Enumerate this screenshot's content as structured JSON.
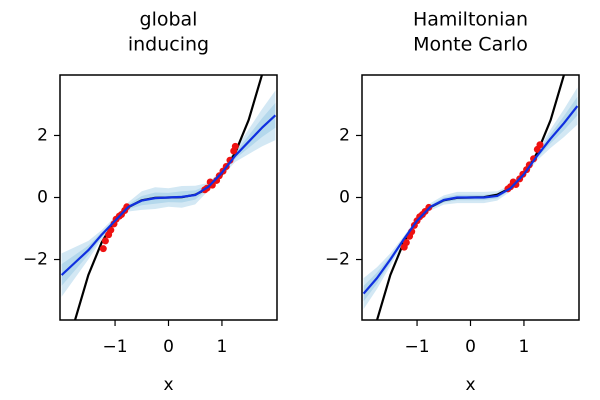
{
  "chart_data": [
    {
      "type": "line",
      "title": [
        "global",
        "inducing"
      ],
      "x_label": "x",
      "xlim": [
        -2.03,
        2.03
      ],
      "ylim": [
        -3.95,
        3.95
      ],
      "xticks": [
        {
          "value": -1,
          "label": "−1"
        },
        0,
        1
      ],
      "yticks": [
        {
          "value": -2,
          "label": "−2"
        },
        0,
        2
      ],
      "series": [
        {
          "kind": "band",
          "color": "#d3e8f4",
          "x": [
            -2,
            -1.75,
            -1.5,
            -1.25,
            -1,
            -0.75,
            -0.5,
            -0.25,
            0,
            0.25,
            0.5,
            0.75,
            1,
            1.25,
            1.5,
            1.75,
            2
          ],
          "lower": [
            -3.2,
            -2.6,
            -2.0,
            -1.35,
            -0.87,
            -0.45,
            -0.4,
            -0.37,
            -0.3,
            -0.33,
            -0.22,
            0.23,
            0.68,
            1.15,
            1.4,
            1.65,
            1.85
          ],
          "upper": [
            -1.8,
            -1.6,
            -1.4,
            -1.05,
            -0.63,
            -0.15,
            0.2,
            0.33,
            0.3,
            0.37,
            0.38,
            0.47,
            0.92,
            1.55,
            2.2,
            2.85,
            3.45
          ]
        },
        {
          "kind": "band",
          "color": "#b4d8ec",
          "x": [
            -2,
            -1.75,
            -1.5,
            -1.25,
            -1,
            -0.75,
            -0.5,
            -0.25,
            0,
            0.25,
            0.5,
            0.75,
            1,
            1.25,
            1.5,
            1.75,
            2
          ],
          "lower": [
            -2.85,
            -2.35,
            -1.85,
            -1.28,
            -0.81,
            -0.38,
            -0.25,
            -0.2,
            -0.15,
            -0.16,
            -0.07,
            0.29,
            0.74,
            1.25,
            1.6,
            1.95,
            2.25
          ],
          "upper": [
            -2.15,
            -1.85,
            -1.55,
            -1.12,
            -0.69,
            -0.22,
            0.05,
            0.16,
            0.15,
            0.2,
            0.23,
            0.41,
            0.86,
            1.45,
            2.0,
            2.55,
            3.05
          ]
        },
        {
          "kind": "line",
          "color": "#000000",
          "x": [
            -1.75,
            -1.5,
            -1.25,
            -1,
            -0.75,
            -0.5,
            -0.25,
            0,
            0.25,
            0.5,
            0.75,
            1,
            1.25,
            1.5,
            1.75
          ],
          "values": [
            -3.96,
            -2.5,
            -1.45,
            -0.74,
            -0.31,
            -0.09,
            -0.01,
            0,
            0.01,
            0.09,
            0.31,
            0.74,
            1.45,
            2.5,
            3.96
          ]
        },
        {
          "kind": "scatter",
          "color": "#ee1111",
          "x": [
            -1.22,
            -1.18,
            -1.12,
            -1.08,
            -1.02,
            -0.98,
            -0.92,
            -0.88,
            -0.82,
            -0.78,
            0.68,
            0.72,
            0.78,
            0.82,
            0.9,
            0.95,
            1.02,
            1.08,
            1.15,
            1.22,
            1.25
          ],
          "values": [
            -1.65,
            -1.4,
            -1.2,
            -1.05,
            -0.85,
            -0.7,
            -0.6,
            -0.55,
            -0.42,
            -0.3,
            0.25,
            0.3,
            0.5,
            0.4,
            0.55,
            0.7,
            0.85,
            1.0,
            1.2,
            1.5,
            1.65
          ]
        },
        {
          "kind": "line",
          "color": "#1030e0",
          "x": [
            -2,
            -1.75,
            -1.5,
            -1.25,
            -1,
            -0.75,
            -0.5,
            -0.25,
            0,
            0.25,
            0.5,
            0.75,
            1,
            1.25,
            1.5,
            1.75,
            2
          ],
          "values": [
            -2.5,
            -2.1,
            -1.7,
            -1.2,
            -0.75,
            -0.3,
            -0.1,
            -0.02,
            0,
            0.02,
            0.08,
            0.35,
            0.8,
            1.35,
            1.8,
            2.25,
            2.65
          ]
        }
      ]
    },
    {
      "type": "line",
      "title": [
        "Hamiltonian",
        "Monte Carlo"
      ],
      "x_label": "x",
      "xlim": [
        -2.03,
        2.03
      ],
      "ylim": [
        -3.95,
        3.95
      ],
      "xticks": [
        {
          "value": -1,
          "label": "−1"
        },
        0,
        1
      ],
      "yticks": [
        {
          "value": -2,
          "label": "−2"
        },
        0,
        2
      ],
      "series": [
        {
          "kind": "band",
          "color": "#d3e8f4",
          "x": [
            -2,
            -1.75,
            -1.5,
            -1.25,
            -1,
            -0.75,
            -0.5,
            -0.25,
            0,
            0.25,
            0.5,
            0.75,
            1,
            1.25,
            1.5,
            1.75,
            2
          ],
          "lower": [
            -3.6,
            -2.95,
            -2.2,
            -1.45,
            -0.85,
            -0.42,
            -0.23,
            -0.18,
            -0.18,
            -0.18,
            -0.1,
            0.2,
            0.65,
            1.2,
            1.6,
            1.95,
            2.35
          ],
          "upper": [
            -2.6,
            -2.25,
            -1.8,
            -1.25,
            -0.65,
            -0.18,
            0.07,
            0.18,
            0.18,
            0.18,
            0.2,
            0.4,
            0.85,
            1.5,
            2.2,
            2.85,
            3.55
          ]
        },
        {
          "kind": "band",
          "color": "#b4d8ec",
          "x": [
            -2,
            -1.75,
            -1.5,
            -1.25,
            -1,
            -0.75,
            -0.5,
            -0.25,
            0,
            0.25,
            0.5,
            0.75,
            1,
            1.25,
            1.5,
            1.75,
            2
          ],
          "lower": [
            -3.35,
            -2.78,
            -2.1,
            -1.4,
            -0.8,
            -0.36,
            -0.16,
            -0.09,
            -0.09,
            -0.09,
            -0.03,
            0.25,
            0.7,
            1.27,
            1.75,
            2.17,
            2.65
          ],
          "upper": [
            -2.85,
            -2.42,
            -1.9,
            -1.3,
            -0.7,
            -0.24,
            0,
            0.09,
            0.09,
            0.09,
            0.13,
            0.35,
            0.8,
            1.43,
            2.05,
            2.63,
            3.25
          ]
        },
        {
          "kind": "line",
          "color": "#000000",
          "x": [
            -1.75,
            -1.5,
            -1.25,
            -1,
            -0.75,
            -0.5,
            -0.25,
            0,
            0.25,
            0.5,
            0.75,
            1,
            1.25,
            1.5,
            1.75
          ],
          "values": [
            -3.96,
            -2.5,
            -1.45,
            -0.74,
            -0.31,
            -0.09,
            -0.01,
            0,
            0.01,
            0.09,
            0.31,
            0.74,
            1.45,
            2.5,
            3.96
          ]
        },
        {
          "kind": "scatter",
          "color": "#ee1111",
          "x": [
            -1.24,
            -1.2,
            -1.14,
            -1.1,
            -1.05,
            -1.0,
            -0.95,
            -0.9,
            -0.85,
            -0.78,
            0.7,
            0.75,
            0.8,
            0.85,
            0.92,
            0.98,
            1.05,
            1.1,
            1.18,
            1.25,
            1.3
          ],
          "values": [
            -1.6,
            -1.45,
            -1.25,
            -1.1,
            -0.9,
            -0.75,
            -0.62,
            -0.55,
            -0.45,
            -0.32,
            0.28,
            0.35,
            0.5,
            0.42,
            0.6,
            0.75,
            0.9,
            1.05,
            1.25,
            1.55,
            1.7
          ]
        },
        {
          "kind": "line",
          "color": "#1030e0",
          "x": [
            -2,
            -1.75,
            -1.5,
            -1.25,
            -1,
            -0.75,
            -0.5,
            -0.25,
            0,
            0.25,
            0.5,
            0.75,
            1,
            1.25,
            1.5,
            1.75,
            2
          ],
          "values": [
            -3.1,
            -2.6,
            -2.0,
            -1.35,
            -0.75,
            -0.3,
            -0.08,
            0,
            0,
            0,
            0.05,
            0.3,
            0.75,
            1.35,
            1.9,
            2.4,
            2.95
          ]
        }
      ]
    }
  ]
}
